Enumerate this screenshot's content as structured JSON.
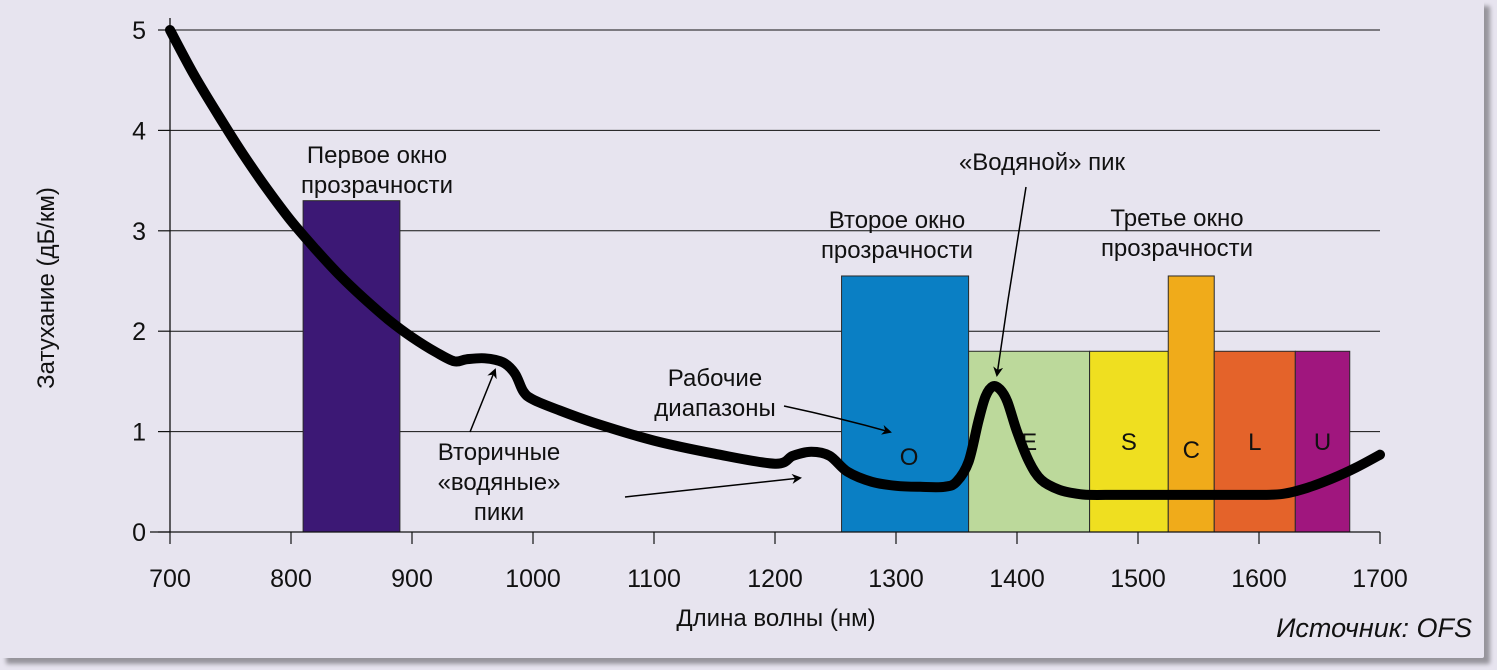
{
  "chart_data": {
    "type": "line",
    "xlabel": "Длина волны (нм)",
    "ylabel": "Затухание (дБ/км)",
    "xlim": [
      700,
      1700
    ],
    "ylim": [
      0,
      5
    ],
    "x_ticks": [
      "700",
      "800",
      "900",
      "1000",
      "1100",
      "1200",
      "1300",
      "1400",
      "1500",
      "1600",
      "1700"
    ],
    "y_ticks": [
      "0",
      "1",
      "2",
      "3",
      "4",
      "5"
    ],
    "grid": "horizontal",
    "series": [
      {
        "x": [
          700,
          720,
          740,
          760,
          780,
          800,
          820,
          840,
          860,
          880,
          900,
          920,
          935,
          945,
          960,
          975,
          985,
          992,
          1000,
          1020,
          1050,
          1100,
          1150,
          1200,
          1215,
          1230,
          1245,
          1260,
          1280,
          1300,
          1320,
          1340,
          1350,
          1360,
          1368,
          1374,
          1380,
          1386,
          1392,
          1400,
          1410,
          1420,
          1435,
          1450,
          1460,
          1480,
          1500,
          1550,
          1600,
          1620,
          1640,
          1660,
          1680,
          1700
        ],
        "y": [
          5.0,
          4.55,
          4.15,
          3.77,
          3.42,
          3.1,
          2.82,
          2.56,
          2.33,
          2.12,
          1.94,
          1.79,
          1.7,
          1.72,
          1.73,
          1.69,
          1.58,
          1.4,
          1.32,
          1.22,
          1.09,
          0.91,
          0.78,
          0.68,
          0.76,
          0.8,
          0.76,
          0.6,
          0.5,
          0.46,
          0.45,
          0.45,
          0.5,
          0.7,
          1.1,
          1.35,
          1.45,
          1.42,
          1.3,
          1.0,
          0.7,
          0.52,
          0.42,
          0.38,
          0.37,
          0.37,
          0.37,
          0.37,
          0.37,
          0.38,
          0.44,
          0.53,
          0.64,
          0.77
        ]
      }
    ],
    "bands": [
      {
        "label": "",
        "x0": 810,
        "x1": 890,
        "y": 3.3,
        "color": "#3c1875"
      },
      {
        "label": "O",
        "x0": 1255,
        "x1": 1360,
        "y": 2.55,
        "color": "#0a7fc4"
      },
      {
        "label": "E",
        "x0": 1360,
        "x1": 1460,
        "y": 1.8,
        "color": "#bcd99b"
      },
      {
        "label": "S",
        "x0": 1460,
        "x1": 1525,
        "y": 1.8,
        "color": "#efdf20"
      },
      {
        "label": "C",
        "x0": 1525,
        "x1": 1563,
        "y": 2.55,
        "color": "#f0ab1a"
      },
      {
        "label": "L",
        "x0": 1563,
        "x1": 1630,
        "y": 1.8,
        "color": "#e4632a"
      },
      {
        "label": "U",
        "x0": 1630,
        "x1": 1675,
        "y": 1.8,
        "color": "#a0167e"
      }
    ],
    "annotations": [
      {
        "text": [
          "Первое окно",
          "прозрачности"
        ]
      },
      {
        "text": [
          "Второе окно",
          "прозрачности"
        ]
      },
      {
        "text": [
          "Третье окно",
          "прозрачности"
        ]
      },
      {
        "text": [
          "«Водяной» пик"
        ]
      },
      {
        "text": [
          "Рабочие",
          "диапазоны"
        ]
      },
      {
        "text": [
          "Вторичные",
          "«водяные»",
          "пики"
        ]
      }
    ]
  },
  "source": "Источник: OFS"
}
